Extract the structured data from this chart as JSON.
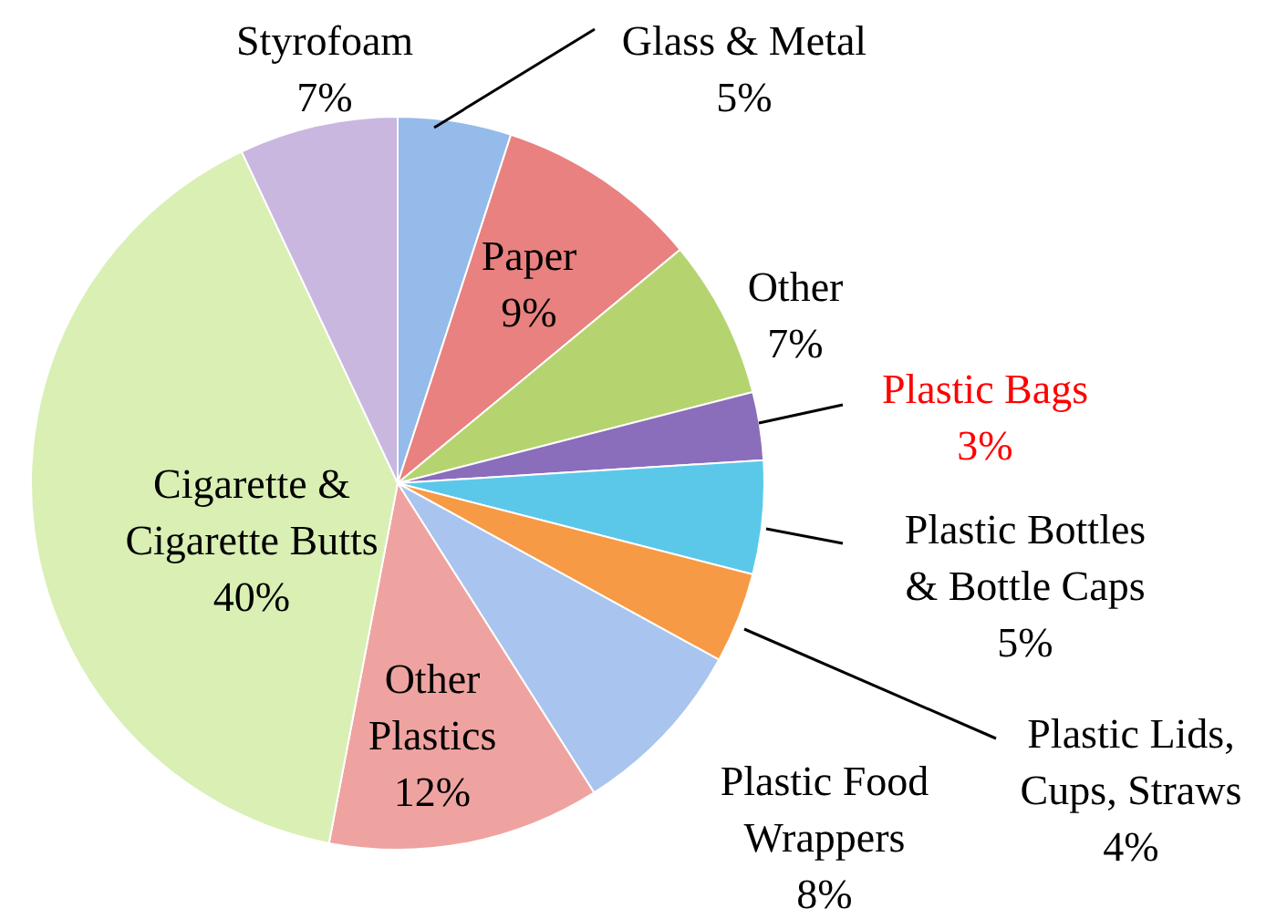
{
  "chart_data": {
    "type": "pie",
    "categories": [
      "Glass & Metal",
      "Paper",
      "Other",
      "Plastic Bags",
      "Plastic Bottles & Bottle Caps",
      "Plastic Lids, Cups, Straws",
      "Plastic Food Wrappers",
      "Other Plastics",
      "Cigarette & Cigarette Butts",
      "Styrofoam"
    ],
    "values": [
      5,
      9,
      7,
      3,
      5,
      4,
      8,
      12,
      40,
      7
    ],
    "value_labels": [
      "5%",
      "9%",
      "7%",
      "3%",
      "5%",
      "4%",
      "8%",
      "12%",
      "40%",
      "7%"
    ],
    "colors": [
      "#94bbea",
      "#e8817f",
      "#b5d46f",
      "#8a6dbb",
      "#5bc8ea",
      "#f79a45",
      "#a9c4ee",
      "#efa3a0",
      "#d9efb4",
      "#c9b7e0"
    ]
  }
}
